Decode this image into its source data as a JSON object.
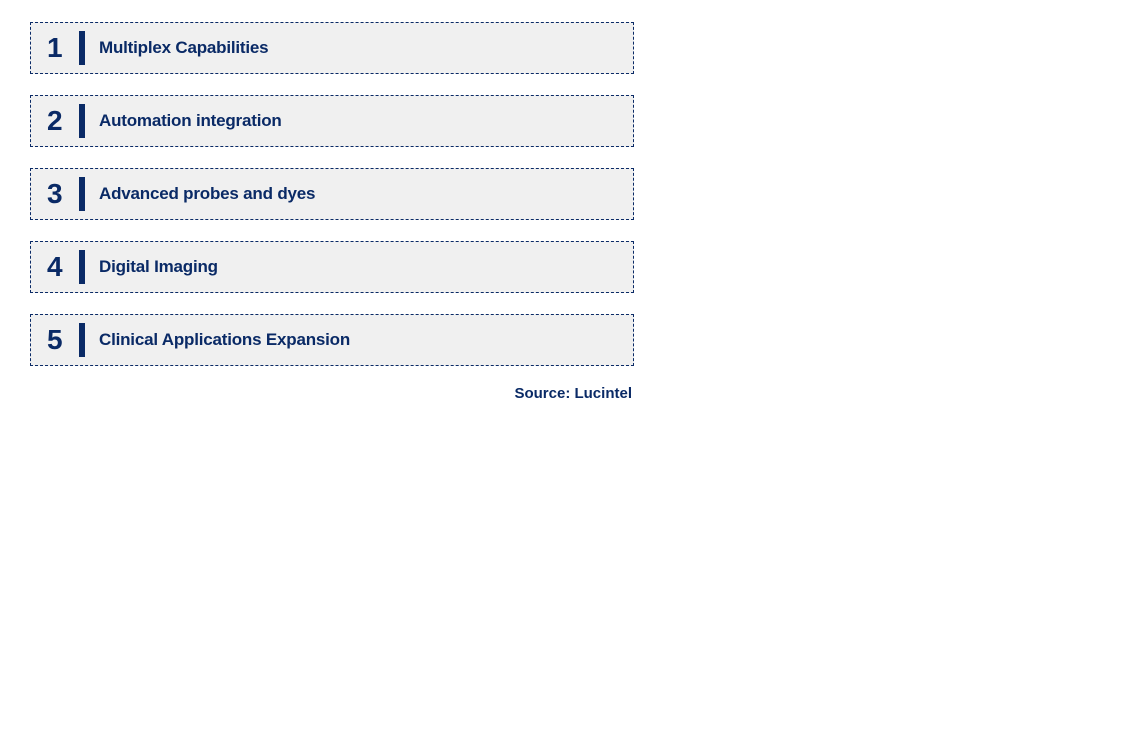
{
  "colors": {
    "text": "#0a2a66",
    "border": "#0a2a66",
    "item_bg": "#f0f0f0",
    "divider": "#0a2a66",
    "page_bg": "#ffffff"
  },
  "typography": {
    "num_fontsize": 28,
    "label_fontsize": 17,
    "source_fontsize": 15,
    "font_weight": 700
  },
  "layout": {
    "item_width": 604,
    "item_height": 52,
    "item_gap": 21,
    "border_dash": "4,3",
    "border_width": 1
  },
  "items": [
    {
      "num": "1",
      "label": "Multiplex Capabilities"
    },
    {
      "num": "2",
      "label": "Automation integration"
    },
    {
      "num": "3",
      "label": "Advanced probes and dyes"
    },
    {
      "num": "4",
      "label": "Digital Imaging"
    },
    {
      "num": "5",
      "label": "Clinical Applications Expansion"
    }
  ],
  "source": "Source: Lucintel"
}
